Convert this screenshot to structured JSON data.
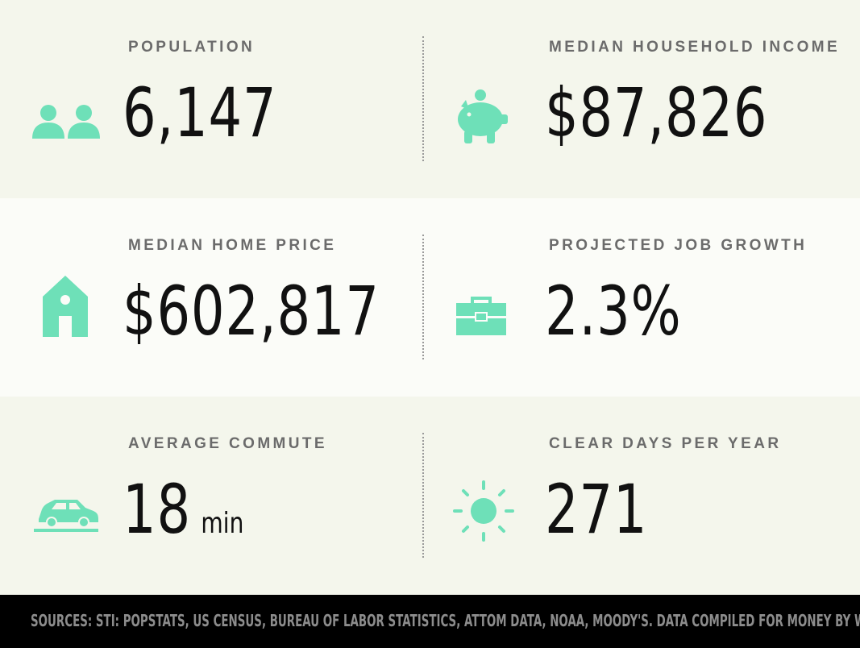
{
  "theme": {
    "accent": "#6ee0b8",
    "label_color": "#6b6b6b",
    "value_color": "#111111",
    "footer_bg": "#000000",
    "footer_text": "#8c8c8c"
  },
  "stats": {
    "population": {
      "label": "POPULATION",
      "value": "6,147",
      "icon": "people-icon"
    },
    "median_household_income": {
      "label": "MEDIAN HOUSEHOLD INCOME",
      "value": "$87,826",
      "icon": "piggy-bank-icon"
    },
    "median_home_price": {
      "label": "MEDIAN HOME PRICE",
      "value": "$602,817",
      "icon": "house-icon"
    },
    "projected_job_growth": {
      "label": "PROJECTED JOB GROWTH",
      "value": "2.3%",
      "icon": "briefcase-icon"
    },
    "average_commute": {
      "label": "AVERAGE COMMUTE",
      "value": "18",
      "unit": "min",
      "icon": "car-icon"
    },
    "clear_days_per_year": {
      "label": "CLEAR DAYS PER YEAR",
      "value": "271",
      "icon": "sun-icon"
    }
  },
  "footer": {
    "sources": "SOURCES: STI: POPSTATS, US CENSUS, BUREAU OF LABOR STATISTICS, ATTOM DATA, NOAA, MOODY'S. DATA COMPILED FOR MONEY BY WITLYTIC."
  }
}
